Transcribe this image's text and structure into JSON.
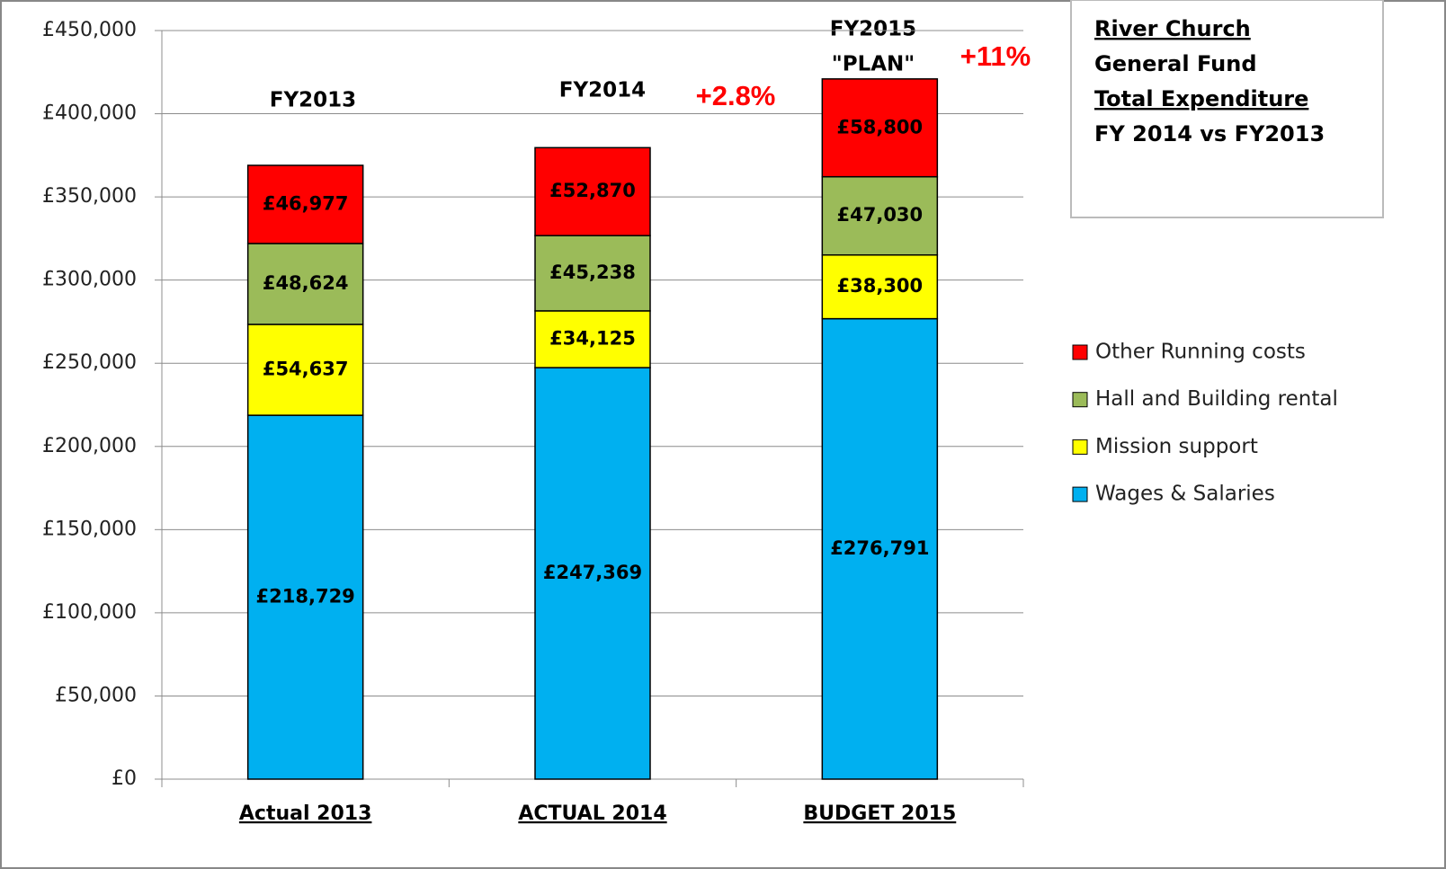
{
  "chart_data": {
    "type": "stacked_bar",
    "title_lines": [
      "River Church",
      "General Fund",
      "Total Expenditure",
      "FY 2014 vs FY2013"
    ],
    "categories": [
      "Actual 2013",
      "ACTUAL 2014",
      "BUDGET 2015"
    ],
    "series": [
      {
        "name": "Wages & Salaries",
        "color": "#00b0f0",
        "values": [
          218729,
          247369,
          276791
        ],
        "value_labels": [
          "£218,729",
          "£247,369",
          "£276,791"
        ]
      },
      {
        "name": "Mission support",
        "color": "#ffff00",
        "values": [
          54637,
          34125,
          38300
        ],
        "value_labels": [
          "£54,637",
          "£34,125",
          "£38,300"
        ]
      },
      {
        "name": "Hall and Building rental",
        "color": "#9bbb59",
        "values": [
          48624,
          45238,
          47030
        ],
        "value_labels": [
          "£48,624",
          "£45,238",
          "£47,030"
        ]
      },
      {
        "name": "Other Running costs",
        "color": "#ff0000",
        "values": [
          46977,
          52870,
          58800
        ],
        "value_labels": [
          "£46,977",
          "£52,870",
          "£58,800"
        ]
      }
    ],
    "bar_annotations": [
      [
        "FY2013"
      ],
      [
        "FY2014"
      ],
      [
        "FY2015",
        "\"PLAN\""
      ]
    ],
    "change_annotations": [
      "+2.8%",
      "+11%"
    ],
    "ylim": [
      0,
      450000
    ],
    "yticks": [
      {
        "value": 0,
        "label": "£0"
      },
      {
        "value": 50000,
        "label": "£50,000"
      },
      {
        "value": 100000,
        "label": "£100,000"
      },
      {
        "value": 150000,
        "label": "£150,000"
      },
      {
        "value": 200000,
        "label": "£200,000"
      },
      {
        "value": 250000,
        "label": "£250,000"
      },
      {
        "value": 300000,
        "label": "£300,000"
      },
      {
        "value": 350000,
        "label": "£350,000"
      },
      {
        "value": 400000,
        "label": "£400,000"
      },
      {
        "value": 450000,
        "label": "£450,000"
      }
    ],
    "grid": true,
    "legend": "right"
  }
}
